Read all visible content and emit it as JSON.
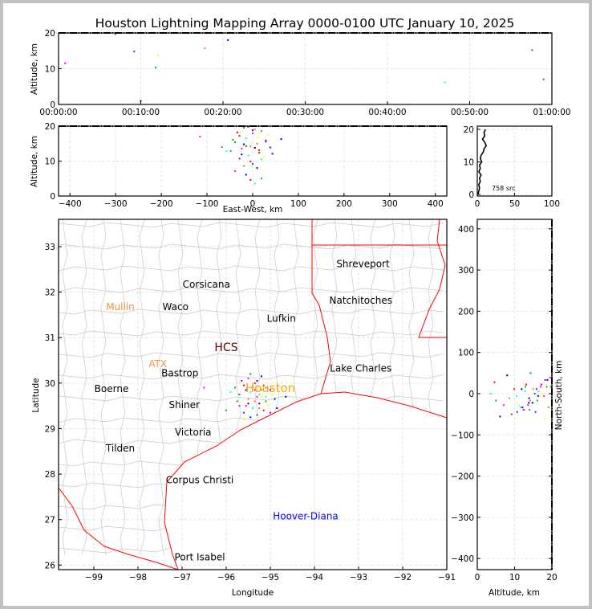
{
  "chart_data": {
    "type": "scatter",
    "title": "Houston Lightning Mapping Array 0000-0100 UTC January 10, 2025",
    "colors": {
      "axis": "#000000",
      "grid": "#e6e6e6",
      "county": "#c8c8c8",
      "border": "#ff0000",
      "city": "#000000",
      "sensor": "#ff8c40",
      "houston": "#ffa500",
      "hcs": "#6b0000",
      "hoover": "#0000ff"
    },
    "point_colors": [
      "#ff00ff",
      "#0000ff",
      "#00c000",
      "#ff0000",
      "#00ffff",
      "#ffff00",
      "#8000ff",
      "#008080",
      "#ff8000",
      "#000080"
    ],
    "time_altitude": {
      "ylabel": "Altitude, km",
      "ylim": [
        0,
        20
      ],
      "yticks": [
        "0",
        "10",
        "20"
      ],
      "xlim_minutes": [
        0,
        60
      ],
      "xticks": [
        "00:00:00",
        "00:10:00",
        "00:20:00",
        "00:30:00",
        "00:40:00",
        "00:50:00",
        "01:00:00"
      ],
      "points": [
        [
          0.8,
          11.5
        ],
        [
          6.9,
          19.7
        ],
        [
          9.2,
          14.8
        ],
        [
          10,
          1
        ],
        [
          11.8,
          10.3
        ],
        [
          12.1,
          13.7
        ],
        [
          17.8,
          15.7
        ],
        [
          20.6,
          18.0
        ],
        [
          47,
          6.2
        ],
        [
          57.6,
          15.2
        ],
        [
          59,
          7
        ]
      ]
    },
    "ew_altitude": {
      "xlabel": "East-West, km",
      "ylabel": "Altitude, km",
      "xlim": [
        -425,
        425
      ],
      "ylim": [
        0,
        20
      ],
      "xticks": [
        "−400",
        "−300",
        "−200",
        "−100",
        "0",
        "100",
        "200",
        "300",
        "400"
      ],
      "yticks": [
        "0",
        "10",
        "20"
      ]
    },
    "histogram": {
      "xlim": [
        0,
        100
      ],
      "ylim": [
        0,
        21
      ],
      "xticks": [
        "0",
        "50",
        "100"
      ],
      "yticks": [
        "0",
        "10",
        "20"
      ],
      "annotation": "758 src",
      "counts": [
        1,
        2,
        3,
        2,
        4,
        3,
        5,
        2,
        4,
        3,
        6,
        4,
        5,
        8,
        9,
        12,
        10,
        7,
        10,
        9,
        11
      ]
    },
    "plan_view": {
      "xlabel": "Longitude",
      "ylabel": "Latitude",
      "xlim": [
        -99.8,
        -91
      ],
      "ylim": [
        25.9,
        33.6
      ],
      "xticks": [
        "−99",
        "−98",
        "−97",
        "−96",
        "−95",
        "−94",
        "−93",
        "−92",
        "−91"
      ],
      "yticks": [
        "26",
        "27",
        "28",
        "29",
        "30",
        "31",
        "32",
        "33"
      ],
      "cities": [
        {
          "name": "Shreveport",
          "lon": -92.9,
          "lat": 32.55,
          "kind": "city"
        },
        {
          "name": "Corsicana",
          "lon": -96.45,
          "lat": 32.1,
          "kind": "city"
        },
        {
          "name": "Natchitoches",
          "lon": -92.95,
          "lat": 31.75,
          "kind": "city"
        },
        {
          "name": "Mullin",
          "lon": -98.4,
          "lat": 31.6,
          "kind": "sensor"
        },
        {
          "name": "Waco",
          "lon": -97.15,
          "lat": 31.6,
          "kind": "city"
        },
        {
          "name": "Lufkin",
          "lon": -94.75,
          "lat": 31.35,
          "kind": "city"
        },
        {
          "name": "HCS",
          "lon": -96.0,
          "lat": 30.7,
          "kind": "hcs"
        },
        {
          "name": "ATX",
          "lon": -97.55,
          "lat": 30.35,
          "kind": "sensor"
        },
        {
          "name": "Bastrop",
          "lon": -97.05,
          "lat": 30.15,
          "kind": "city"
        },
        {
          "name": "Lake Charles",
          "lon": -92.95,
          "lat": 30.25,
          "kind": "city"
        },
        {
          "name": "Boerne",
          "lon": -98.6,
          "lat": 29.8,
          "kind": "city"
        },
        {
          "name": "Houston",
          "lon": -95.0,
          "lat": 29.8,
          "kind": "houston"
        },
        {
          "name": "Shiner",
          "lon": -96.95,
          "lat": 29.45,
          "kind": "city"
        },
        {
          "name": "Victoria",
          "lon": -96.75,
          "lat": 28.85,
          "kind": "city"
        },
        {
          "name": "Tilden",
          "lon": -98.4,
          "lat": 28.5,
          "kind": "city"
        },
        {
          "name": "Corpus Christi",
          "lon": -96.6,
          "lat": 27.8,
          "kind": "city"
        },
        {
          "name": "Hoover-Diana",
          "lon": -94.2,
          "lat": 27.0,
          "kind": "hoover"
        },
        {
          "name": "Port Isabel",
          "lon": -96.6,
          "lat": 26.1,
          "kind": "city"
        }
      ]
    },
    "ns_altitude": {
      "xlabel": "Altitude, km",
      "ylabel": "North-South, km",
      "xlim": [
        0,
        20
      ],
      "ylim": [
        -427,
        423
      ],
      "xticks": [
        "0",
        "10",
        "20"
      ],
      "yticks": [
        "−400",
        "−300",
        "−200",
        "−100",
        "0",
        "100",
        "200",
        "300",
        "400"
      ]
    },
    "sources": [
      [
        -95.5,
        30.1,
        19.5
      ],
      [
        -95.3,
        30.05,
        18.8
      ],
      [
        -95.1,
        29.9,
        18.6
      ],
      [
        -95.6,
        29.95,
        17.2
      ],
      [
        -95.45,
        29.8,
        16.5
      ],
      [
        -95.2,
        29.7,
        16.8
      ],
      [
        -95.0,
        29.85,
        15.9
      ],
      [
        -95.7,
        29.75,
        15.4
      ],
      [
        -95.35,
        29.6,
        14.2
      ],
      [
        -95.25,
        29.55,
        13.8
      ],
      [
        -95.55,
        29.5,
        13.6
      ],
      [
        -94.9,
        29.65,
        13.9
      ],
      [
        -95.8,
        29.9,
        12.9
      ],
      [
        -95.15,
        29.4,
        12.4
      ],
      [
        -95.4,
        29.45,
        11.6
      ],
      [
        -95.05,
        29.5,
        11.2
      ],
      [
        -95.6,
        29.35,
        10.7
      ],
      [
        -95.3,
        29.3,
        9.2
      ],
      [
        -95.5,
        29.65,
        8.6
      ],
      [
        -95.2,
        30.15,
        8.0
      ],
      [
        -95.7,
        29.5,
        7.1
      ],
      [
        -95.45,
        29.25,
        6.1
      ],
      [
        -95.1,
        29.6,
        5.0
      ],
      [
        -95.35,
        30.0,
        4.6
      ],
      [
        -95.25,
        29.75,
        3.6
      ],
      [
        -94.95,
        29.75,
        17.5
      ],
      [
        -95.65,
        30.05,
        18.2
      ],
      [
        -95.4,
        29.9,
        19.8
      ],
      [
        -95.2,
        29.85,
        15.0
      ],
      [
        -95.5,
        29.55,
        14.8
      ],
      [
        -95.3,
        29.7,
        17.9
      ],
      [
        -94.85,
        29.45,
        12.1
      ],
      [
        -95.75,
        29.6,
        16.1
      ],
      [
        -95.15,
        29.95,
        13.1
      ],
      [
        -95.9,
        29.8,
        12.8
      ],
      [
        -95.6,
        29.2,
        18.1
      ],
      [
        -95.0,
        29.35,
        15.6
      ],
      [
        -95.45,
        30.2,
        14.3
      ],
      [
        -95.25,
        29.45,
        19.1
      ],
      [
        -95.55,
        29.85,
        11.9
      ],
      [
        -96.5,
        29.9,
        17.0
      ],
      [
        -94.65,
        29.7,
        16.3
      ],
      [
        -96.0,
        29.4,
        14.0
      ],
      [
        -95.35,
        29.85,
        9.9
      ],
      [
        -95.1,
        29.7,
        10.5
      ]
    ],
    "center": {
      "lon": -95.3,
      "lat": 29.75
    }
  }
}
